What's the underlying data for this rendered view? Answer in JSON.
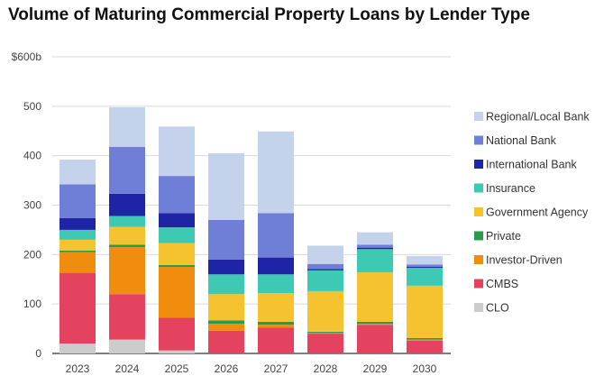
{
  "chart_data": {
    "type": "bar",
    "stacked": true,
    "title": "Volume of Maturing Commercial Property Loans by Lender Type",
    "xlabel": "",
    "ylabel": "",
    "ylim": [
      0,
      600
    ],
    "grid": true,
    "legend_position": "right",
    "categories": [
      "2023",
      "2024",
      "2025",
      "2026",
      "2027",
      "2028",
      "2029",
      "2030"
    ],
    "y_ticks": [
      {
        "value": 0,
        "label": "0"
      },
      {
        "value": 100,
        "label": "100"
      },
      {
        "value": 200,
        "label": "200"
      },
      {
        "value": 300,
        "label": "300"
      },
      {
        "value": 400,
        "label": "400"
      },
      {
        "value": 500,
        "label": "500"
      },
      {
        "value": 600,
        "label": "$600b"
      }
    ],
    "series": [
      {
        "name": "CLO",
        "color": "#cccccc",
        "values": [
          20,
          28,
          6,
          0,
          0,
          0,
          0,
          0
        ]
      },
      {
        "name": "CMBS",
        "color": "#e4425f",
        "values": [
          143,
          92,
          66,
          46,
          52,
          40,
          58,
          26
        ]
      },
      {
        "name": "Investor-Driven",
        "color": "#f08c0e",
        "values": [
          42,
          95,
          103,
          14,
          6,
          2,
          2,
          2
        ]
      },
      {
        "name": "Private",
        "color": "#2b9a4a",
        "values": [
          3,
          5,
          4,
          7,
          6,
          2,
          4,
          3
        ]
      },
      {
        "name": "Government Agency",
        "color": "#f5c230",
        "values": [
          22,
          36,
          44,
          53,
          58,
          82,
          100,
          106
        ]
      },
      {
        "name": "Insurance",
        "color": "#3ec9b4",
        "values": [
          20,
          22,
          32,
          40,
          38,
          42,
          47,
          36
        ]
      },
      {
        "name": "International Bank",
        "color": "#1f23a6",
        "values": [
          24,
          45,
          29,
          30,
          34,
          3,
          3,
          2
        ]
      },
      {
        "name": "National Bank",
        "color": "#6f7fd7",
        "values": [
          68,
          95,
          75,
          80,
          90,
          10,
          6,
          5
        ]
      },
      {
        "name": "Regional/Local Bank",
        "color": "#c5d2ec",
        "values": [
          50,
          80,
          100,
          135,
          165,
          37,
          25,
          17
        ]
      }
    ]
  }
}
